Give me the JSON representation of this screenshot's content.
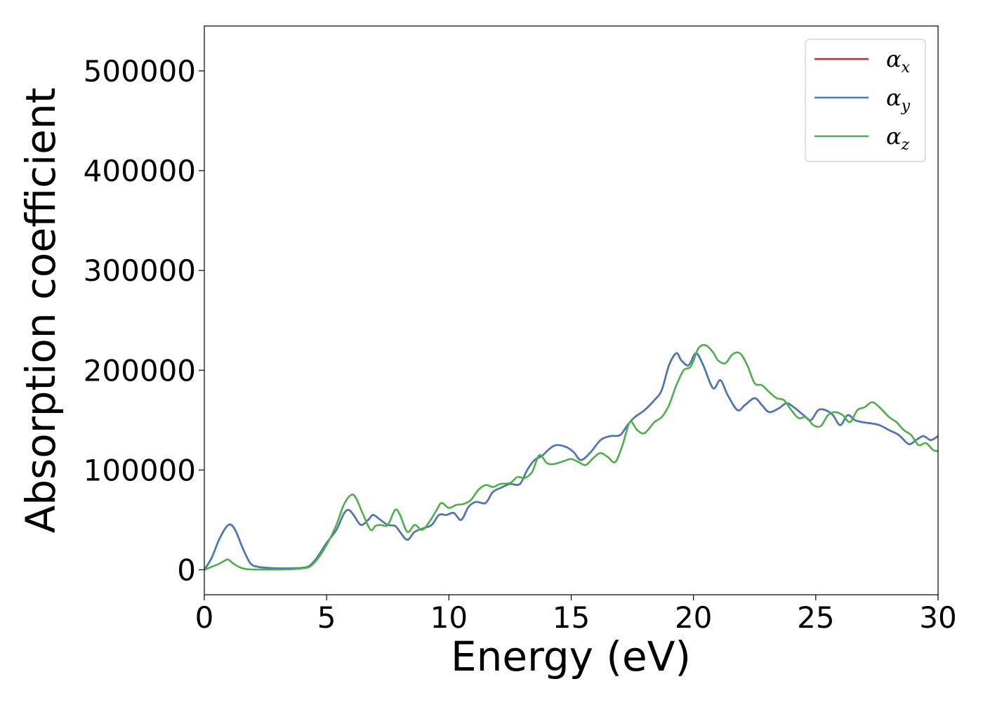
{
  "chart_data": {
    "type": "line",
    "title": "",
    "xlabel": "Energy (eV)",
    "ylabel": "Absorption coefficient",
    "xlim": [
      0,
      30
    ],
    "ylim": [
      -25000,
      545000
    ],
    "xticks": [
      "0",
      "5",
      "10",
      "15",
      "20",
      "25",
      "30"
    ],
    "yticks": [
      "0",
      "100000",
      "200000",
      "300000",
      "400000",
      "500000"
    ],
    "grid": false,
    "legend_position": "top-right",
    "legend": [
      {
        "label": "α",
        "sub": "x",
        "color": "#d62728"
      },
      {
        "label": "α",
        "sub": "y",
        "color": "#4a7ab5"
      },
      {
        "label": "α",
        "sub": "z",
        "color": "#4daf4a"
      }
    ],
    "series": [
      {
        "name": "αx",
        "color": "#d62728",
        "x": [
          0,
          0.3,
          0.6,
          0.9,
          1.1,
          1.3,
          1.6,
          1.9,
          2.2,
          2.6,
          3.0,
          3.5,
          4.0,
          4.3,
          4.6,
          5.0,
          5.4,
          5.7,
          5.9,
          6.1,
          6.4,
          6.7,
          6.9,
          7.2,
          7.5,
          7.8,
          8.0,
          8.3,
          8.6,
          9.0,
          9.3,
          9.6,
          9.9,
          10.2,
          10.5,
          10.8,
          11.1,
          11.5,
          11.8,
          12.2,
          12.5,
          12.9,
          13.2,
          13.5,
          13.8,
          14.1,
          14.4,
          14.8,
          15.1,
          15.4,
          15.8,
          16.2,
          16.6,
          17.0,
          17.3,
          17.6,
          18.0,
          18.4,
          18.7,
          19.0,
          19.3,
          19.5,
          19.8,
          20.1,
          20.4,
          20.8,
          21.1,
          21.4,
          21.8,
          22.1,
          22.5,
          22.8,
          23.1,
          23.5,
          23.8,
          24.1,
          24.5,
          24.8,
          25.1,
          25.4,
          25.7,
          26.0,
          26.3,
          26.6,
          26.9,
          27.2,
          27.6,
          28.0,
          28.4,
          28.8,
          29.1,
          29.4,
          29.7,
          30.0
        ],
        "y": [
          0,
          12000,
          30000,
          43000,
          45000,
          38000,
          20000,
          6000,
          3000,
          2000,
          1500,
          1500,
          2000,
          4000,
          12000,
          27000,
          40000,
          56000,
          60000,
          55000,
          45000,
          50000,
          55000,
          50000,
          45000,
          44000,
          38000,
          30000,
          38000,
          42000,
          45000,
          55000,
          55000,
          57000,
          50000,
          63000,
          68000,
          67000,
          78000,
          83000,
          86000,
          86000,
          100000,
          110000,
          114000,
          121000,
          125000,
          123000,
          118000,
          110000,
          118000,
          130000,
          134000,
          135000,
          145000,
          153000,
          160000,
          170000,
          180000,
          205000,
          217000,
          210000,
          205000,
          217000,
          205000,
          182000,
          190000,
          175000,
          160000,
          165000,
          172000,
          165000,
          158000,
          162000,
          167000,
          163000,
          155000,
          150000,
          160000,
          160000,
          155000,
          145000,
          155000,
          150000,
          148000,
          147000,
          145000,
          140000,
          135000,
          126000,
          130000,
          134000,
          130000,
          134000
        ]
      },
      {
        "name": "αy",
        "color": "#4a7ab5",
        "x": [
          0,
          0.3,
          0.6,
          0.9,
          1.1,
          1.3,
          1.6,
          1.9,
          2.2,
          2.6,
          3.0,
          3.5,
          4.0,
          4.3,
          4.6,
          5.0,
          5.4,
          5.7,
          5.9,
          6.1,
          6.4,
          6.7,
          6.9,
          7.2,
          7.5,
          7.8,
          8.0,
          8.3,
          8.6,
          9.0,
          9.3,
          9.6,
          9.9,
          10.2,
          10.5,
          10.8,
          11.1,
          11.5,
          11.8,
          12.2,
          12.5,
          12.9,
          13.2,
          13.5,
          13.8,
          14.1,
          14.4,
          14.8,
          15.1,
          15.4,
          15.8,
          16.2,
          16.6,
          17.0,
          17.3,
          17.6,
          18.0,
          18.4,
          18.7,
          19.0,
          19.3,
          19.5,
          19.8,
          20.1,
          20.4,
          20.8,
          21.1,
          21.4,
          21.8,
          22.1,
          22.5,
          22.8,
          23.1,
          23.5,
          23.8,
          24.1,
          24.5,
          24.8,
          25.1,
          25.4,
          25.7,
          26.0,
          26.3,
          26.6,
          26.9,
          27.2,
          27.6,
          28.0,
          28.4,
          28.8,
          29.1,
          29.4,
          29.7,
          30.0
        ],
        "y": [
          0,
          12000,
          30000,
          43000,
          45000,
          38000,
          20000,
          6000,
          3000,
          2000,
          1500,
          1500,
          2000,
          4000,
          12000,
          27000,
          40000,
          56000,
          60000,
          55000,
          45000,
          50000,
          55000,
          50000,
          45000,
          44000,
          38000,
          30000,
          38000,
          42000,
          45000,
          55000,
          55000,
          57000,
          50000,
          63000,
          68000,
          67000,
          78000,
          83000,
          86000,
          86000,
          100000,
          110000,
          114000,
          121000,
          125000,
          123000,
          118000,
          110000,
          118000,
          130000,
          134000,
          135000,
          145000,
          153000,
          160000,
          170000,
          180000,
          205000,
          217000,
          210000,
          205000,
          217000,
          205000,
          182000,
          190000,
          175000,
          160000,
          165000,
          172000,
          165000,
          158000,
          162000,
          167000,
          163000,
          155000,
          150000,
          160000,
          160000,
          155000,
          145000,
          155000,
          150000,
          148000,
          147000,
          145000,
          140000,
          135000,
          126000,
          130000,
          134000,
          130000,
          134000
        ]
      },
      {
        "name": "αz",
        "color": "#4daf4a",
        "x": [
          0,
          0.3,
          0.6,
          0.9,
          1.0,
          1.2,
          1.5,
          1.8,
          2.2,
          2.6,
          3.0,
          3.5,
          4.0,
          4.3,
          4.6,
          5.0,
          5.4,
          5.7,
          6.0,
          6.2,
          6.5,
          6.8,
          7.0,
          7.2,
          7.5,
          7.8,
          8.0,
          8.3,
          8.6,
          8.9,
          9.2,
          9.5,
          9.7,
          10.0,
          10.3,
          10.6,
          10.9,
          11.2,
          11.5,
          11.8,
          12.1,
          12.5,
          12.8,
          13.1,
          13.4,
          13.7,
          14.0,
          14.3,
          14.7,
          15.0,
          15.3,
          15.6,
          15.9,
          16.2,
          16.5,
          16.8,
          17.1,
          17.4,
          17.7,
          18.0,
          18.4,
          18.7,
          19.0,
          19.3,
          19.6,
          19.9,
          20.2,
          20.5,
          20.8,
          21.0,
          21.3,
          21.6,
          21.9,
          22.2,
          22.5,
          22.8,
          23.1,
          23.4,
          23.7,
          24.0,
          24.3,
          24.6,
          24.9,
          25.2,
          25.5,
          25.8,
          26.1,
          26.4,
          26.7,
          27.0,
          27.3,
          27.6,
          28.0,
          28.3,
          28.6,
          28.9,
          29.2,
          29.5,
          29.8,
          30.0
        ],
        "y": [
          0,
          3000,
          6000,
          10000,
          10000,
          6000,
          2000,
          500,
          300,
          300,
          300,
          500,
          1500,
          3000,
          10000,
          25000,
          45000,
          65000,
          75000,
          72000,
          55000,
          40000,
          44000,
          45000,
          45000,
          60000,
          55000,
          38000,
          45000,
          40000,
          48000,
          60000,
          67000,
          62000,
          65000,
          66000,
          70000,
          80000,
          85000,
          83000,
          86000,
          87000,
          93000,
          92000,
          98000,
          115000,
          107000,
          106000,
          109000,
          111000,
          108000,
          105000,
          112000,
          117000,
          113000,
          108000,
          125000,
          148000,
          140000,
          137000,
          148000,
          153000,
          165000,
          185000,
          200000,
          204000,
          222000,
          225000,
          218000,
          210000,
          207000,
          216000,
          217000,
          205000,
          187000,
          185000,
          178000,
          172000,
          170000,
          160000,
          152000,
          153000,
          145000,
          144000,
          155000,
          158000,
          155000,
          148000,
          160000,
          163000,
          168000,
          163000,
          153000,
          148000,
          140000,
          135000,
          125000,
          127000,
          120000,
          119000
        ]
      }
    ]
  }
}
